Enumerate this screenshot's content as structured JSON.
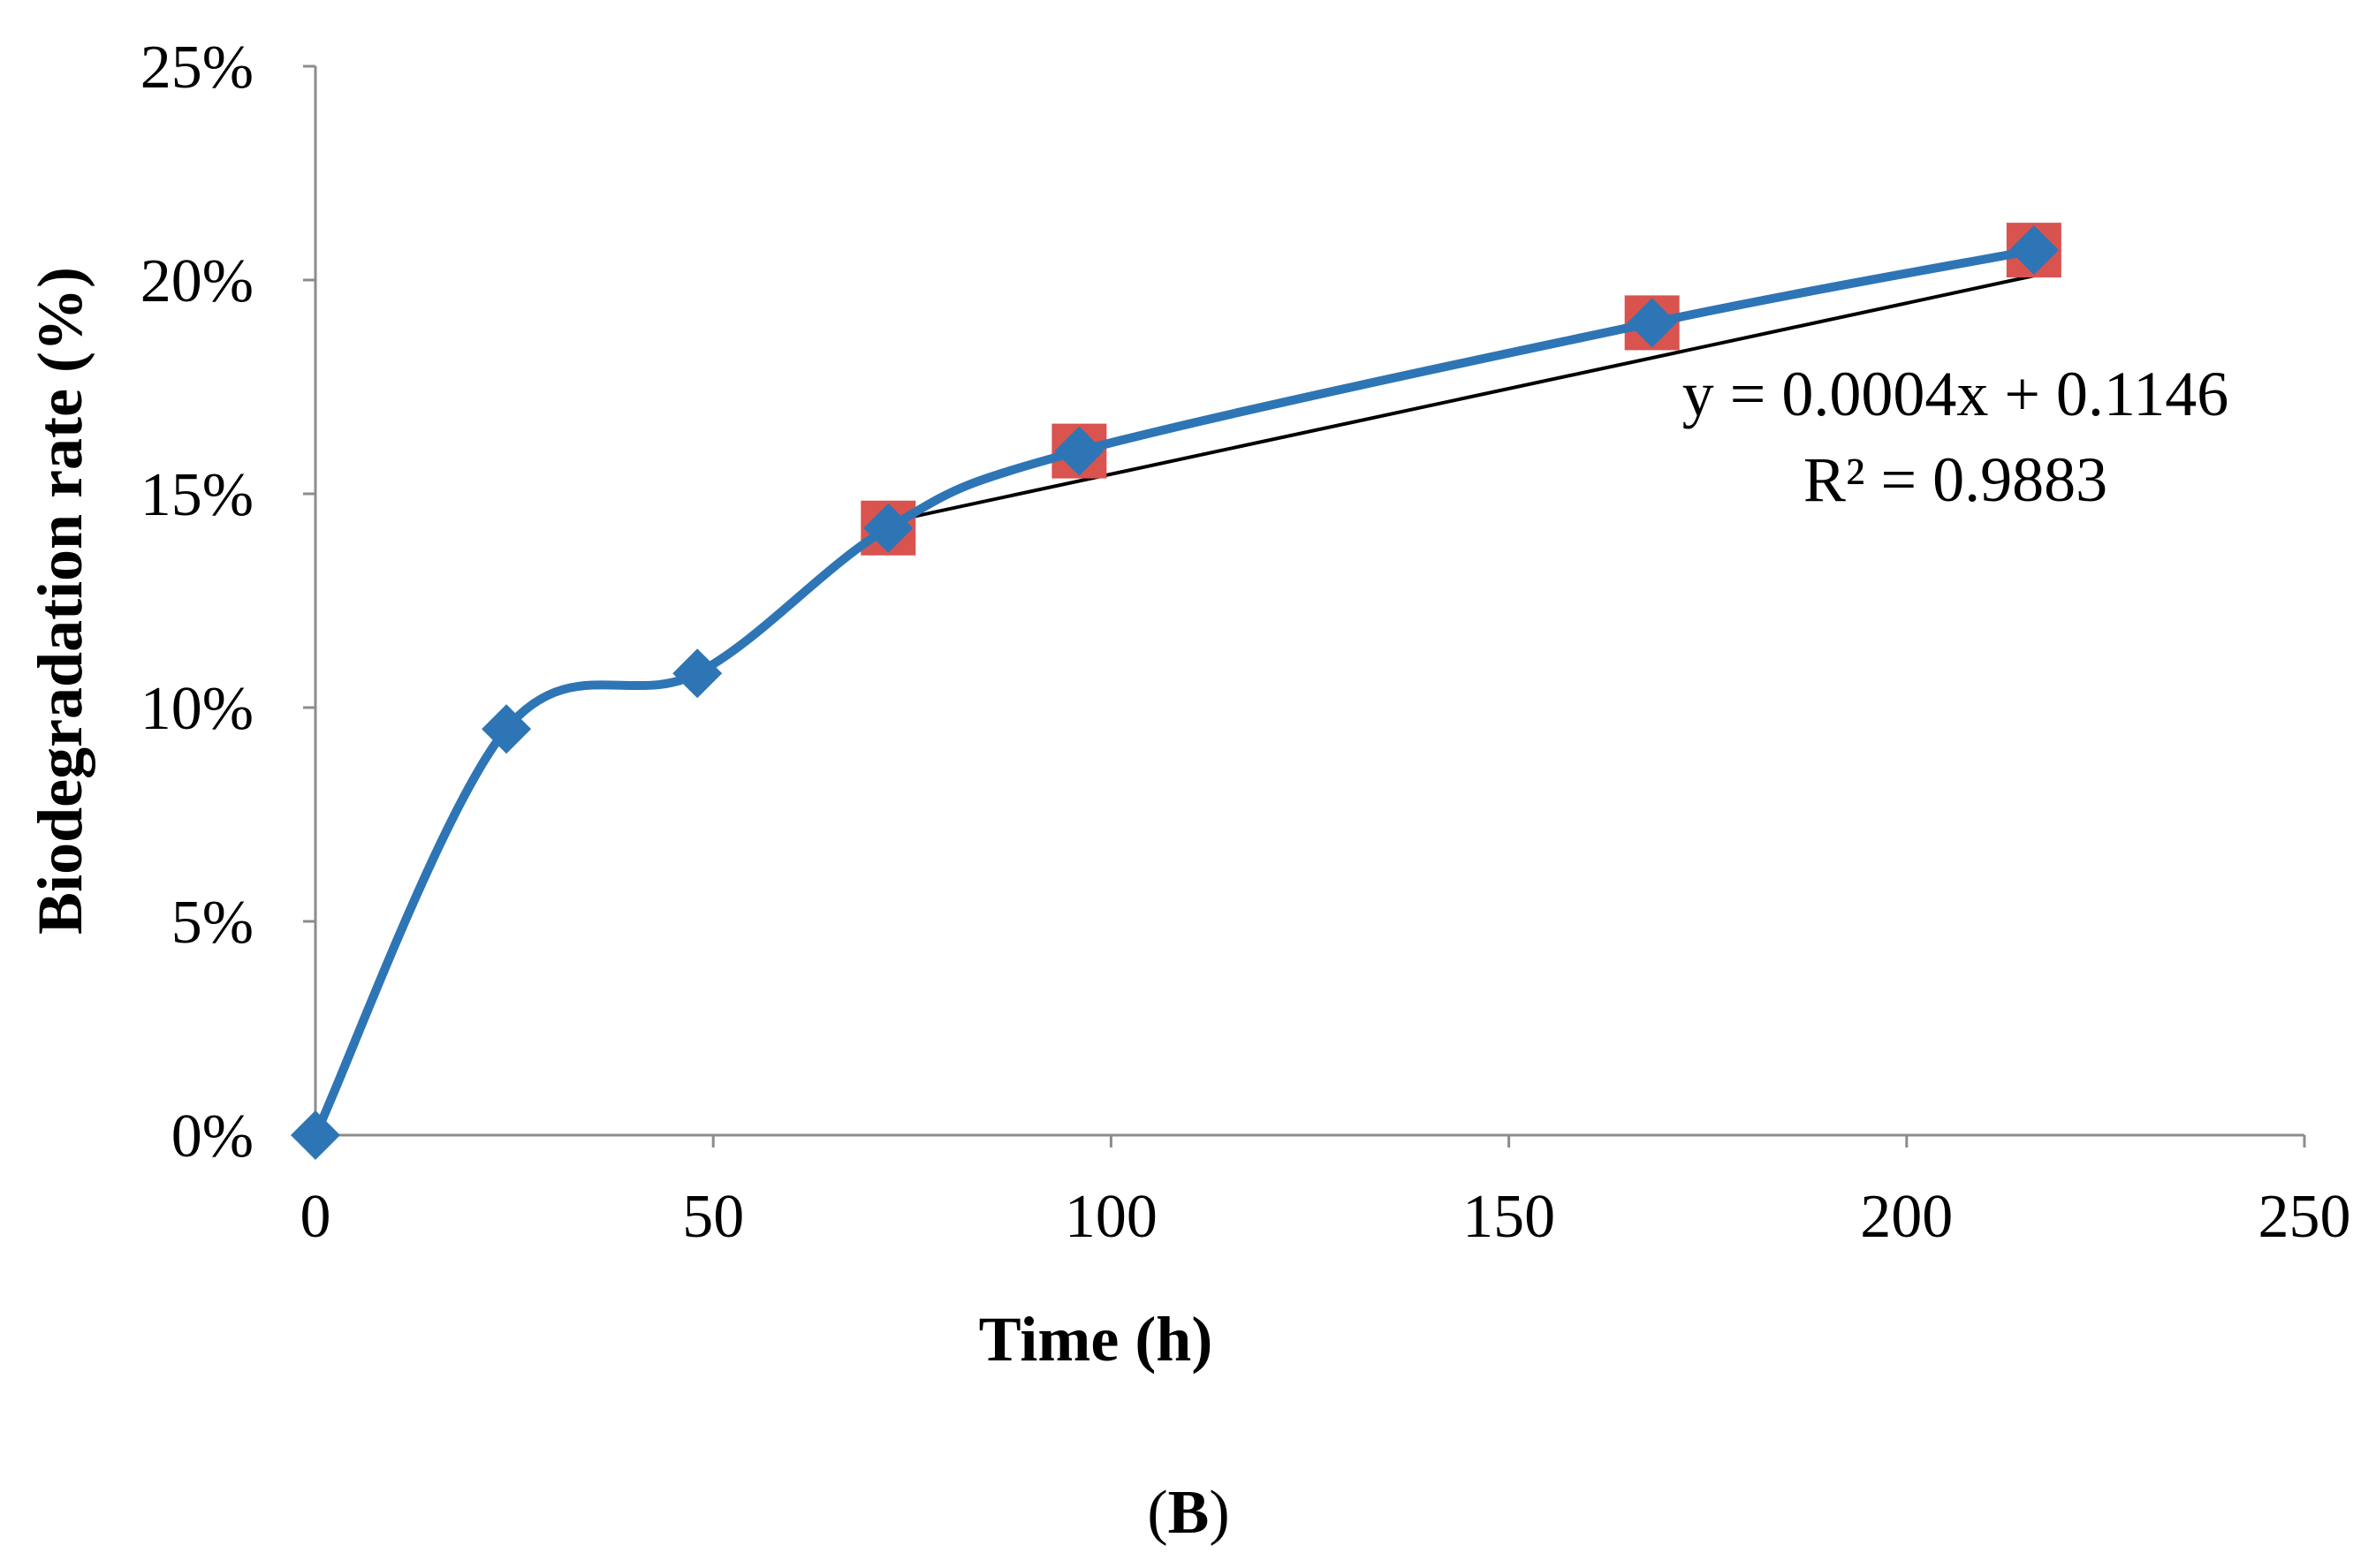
{
  "chart_data": {
    "type": "line",
    "title": "",
    "xlabel": "Time (h)",
    "ylabel": "Biodegradation rate (%)",
    "xlim": [
      0,
      250
    ],
    "ylim": [
      0,
      0.25
    ],
    "x_ticks": [
      "0",
      "50",
      "100",
      "150",
      "200",
      "250"
    ],
    "y_ticks": [
      "0%",
      "5%",
      "10%",
      "15%",
      "20%",
      "25%"
    ],
    "grid": false,
    "legend": "none",
    "series": [
      {
        "kind": "smoothed-line-with-diamond-markers",
        "color": "#2e75b6",
        "x": [
          0,
          24,
          48,
          72,
          96,
          168,
          216
        ],
        "y": [
          0.0,
          0.095,
          0.108,
          0.142,
          0.16,
          0.19,
          0.207
        ]
      },
      {
        "kind": "square-markers",
        "color": "#d9534f",
        "x": [
          72,
          96,
          168,
          216
        ],
        "y": [
          0.142,
          0.16,
          0.19,
          0.207
        ]
      }
    ],
    "trendline": {
      "kind": "linear",
      "color": "#000000",
      "slope": 0.0004,
      "intercept": 0.1146,
      "x_range": [
        72,
        216
      ]
    },
    "annotations": {
      "equation": "y = 0.0004x + 0.1146",
      "r2": "R² = 0.9883"
    }
  },
  "panel": {
    "open": "(",
    "letter": "B",
    "close": ")"
  }
}
